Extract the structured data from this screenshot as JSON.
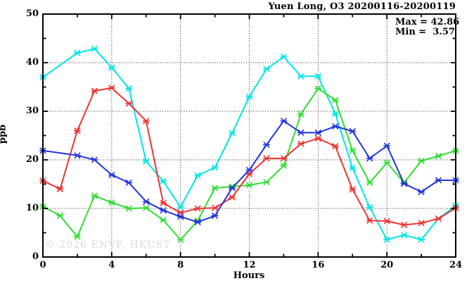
{
  "title": "Yuen Long, O3 20200116-20200119",
  "stats": {
    "max_label": "Max = 42.86",
    "min_label": "Min =  3.57"
  },
  "watermark": "© 2026 ENVF, HKUST",
  "colors": {
    "axis": "#000000",
    "grid": "#1a1a1a",
    "watermark": "#dadada",
    "background": "#ffffff"
  },
  "chart_data": {
    "type": "line",
    "title": "Yuen Long, O3 20200116-20200119",
    "xlabel": "Hours",
    "ylabel": "ppb",
    "xlim": [
      0,
      24
    ],
    "ylim": [
      0,
      50
    ],
    "x_ticks_labeled": [
      0,
      4,
      8,
      12,
      16,
      20,
      24
    ],
    "x_ticks_minor": [
      2,
      6,
      10,
      14,
      18,
      22
    ],
    "y_ticks_labeled": [
      0,
      10,
      20,
      30,
      40,
      50
    ],
    "y_ticks_minor": [
      5,
      15,
      25,
      35,
      45
    ],
    "grid": {
      "x_at": [
        4,
        8,
        12,
        16,
        20
      ],
      "y_at": [
        10,
        20,
        30,
        40
      ],
      "style": "dotted"
    },
    "legend": "none",
    "annotations": {
      "max": 42.86,
      "min": 3.57
    },
    "x": [
      0,
      1,
      2,
      3,
      4,
      5,
      6,
      7,
      8,
      9,
      10,
      11,
      12,
      13,
      14,
      15,
      16,
      17,
      18,
      19,
      20,
      21,
      22,
      23,
      24
    ],
    "series": [
      {
        "name": "line-cyan",
        "color": "#00E6E6",
        "marker": "asterisk",
        "no_marker_at_x": [
          1
        ],
        "values": [
          37.0,
          39.5,
          42.0,
          42.86,
          39.0,
          34.7,
          19.7,
          15.6,
          10.3,
          16.8,
          18.4,
          25.5,
          33.0,
          38.7,
          41.2,
          37.2,
          37.2,
          29.5,
          18.3,
          10.2,
          3.6,
          4.5,
          3.6,
          7.9,
          10.6
        ]
      },
      {
        "name": "line-green",
        "color": "#33DD33",
        "marker": "asterisk",
        "no_marker_at_x": [],
        "values": [
          10.4,
          8.5,
          4.2,
          12.6,
          11.2,
          10.0,
          10.1,
          7.6,
          3.57,
          7.5,
          14.2,
          14.5,
          14.8,
          15.4,
          18.8,
          29.4,
          34.7,
          32.3,
          21.9,
          15.3,
          19.4,
          15.3,
          19.8,
          20.8,
          21.9
        ]
      },
      {
        "name": "line-red",
        "color": "#EE3333",
        "marker": "asterisk",
        "no_marker_at_x": [],
        "values": [
          15.7,
          14.0,
          26.0,
          34.2,
          34.8,
          31.6,
          28.0,
          11.1,
          9.1,
          10.0,
          10.1,
          12.3,
          17.1,
          20.3,
          20.3,
          23.3,
          24.4,
          22.8,
          13.9,
          7.5,
          7.4,
          6.6,
          7.0,
          7.9,
          10.1
        ]
      },
      {
        "name": "line-blue",
        "color": "#2233DD",
        "marker": "asterisk",
        "no_marker_at_x": [
          1
        ],
        "values": [
          21.9,
          21.4,
          20.9,
          20.0,
          16.9,
          15.3,
          11.4,
          9.6,
          8.3,
          7.2,
          8.5,
          14.2,
          17.9,
          23.1,
          28.0,
          25.6,
          25.6,
          26.9,
          25.9,
          20.3,
          22.9,
          15.1,
          13.4,
          15.8,
          15.8
        ]
      }
    ]
  }
}
